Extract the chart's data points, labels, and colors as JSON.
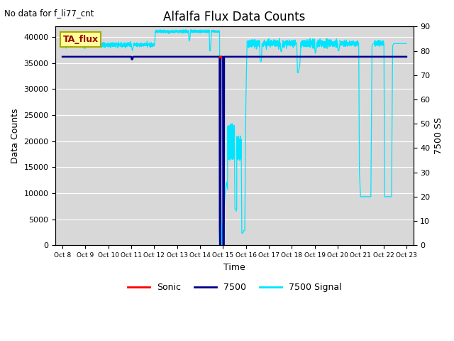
{
  "title": "Alfalfa Flux Data Counts",
  "no_data_text": "No data for f_li77_cnt",
  "xlabel": "Time",
  "ylabel_left": "Data Counts",
  "ylabel_right": "7500 SS",
  "box_label": "TA_flux",
  "ylim_left": [
    0,
    42000
  ],
  "ylim_right": [
    0,
    90
  ],
  "xtick_labels": [
    "Oct 8",
    "Oct 9",
    "Oct 10",
    "Oct 11",
    "Oct 12",
    "Oct 13",
    "Oct 14",
    "Oct 15",
    "Oct 16",
    "Oct 17",
    "Oct 18",
    "Oct 19",
    "Oct 20",
    "Oct 21",
    "Oct 22",
    "Oct 23"
  ],
  "yticks_left": [
    0,
    5000,
    10000,
    15000,
    20000,
    25000,
    30000,
    35000,
    40000
  ],
  "yticks_right": [
    0,
    10,
    20,
    30,
    40,
    50,
    60,
    70,
    80,
    90
  ],
  "plot_bg_color": "#d8d8d8",
  "sonic_color": "#ff0000",
  "line7500_color": "#00008b",
  "signal_color": "#00e5ff",
  "legend_labels": [
    "Sonic",
    "7500",
    "7500 Signal"
  ],
  "scale": 466.67,
  "baseline_7500": 36200,
  "baseline_signal": 82.5
}
